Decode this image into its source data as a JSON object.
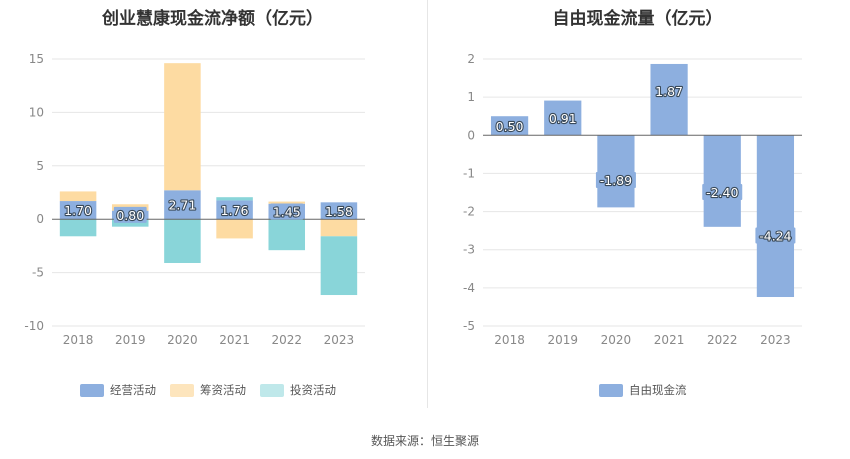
{
  "source": "数据来源：恒生聚源",
  "colors": {
    "operating": "#8dafdf",
    "financing": "#fddba2",
    "investing": "#89d5d9",
    "free": "#8dafdf",
    "grid": "#e6e6e6",
    "axis": "#666666",
    "tick_text": "#888888"
  },
  "chart_data": [
    {
      "type": "bar",
      "stacked": true,
      "title": "创业慧康现金流净额（亿元）",
      "categories": [
        "2018",
        "2019",
        "2020",
        "2021",
        "2022",
        "2023"
      ],
      "ylim": [
        -10,
        15
      ],
      "yticks": [
        "15",
        "10",
        "5",
        "0",
        "-5",
        "-10"
      ],
      "grid": true,
      "legend_position": "bottom",
      "series": [
        {
          "name": "经营活动",
          "values": [
            1.7,
            0.8,
            2.71,
            1.76,
            1.45,
            1.58
          ],
          "labels": [
            "1.70",
            "0.80",
            "2.71",
            "1.76",
            "1.45",
            "1.58"
          ]
        },
        {
          "name": "筹资活动",
          "values": [
            0.9,
            0.6,
            11.9,
            -1.8,
            0.2,
            -1.6
          ]
        },
        {
          "name": "投资活动",
          "values": [
            -1.6,
            -0.7,
            -4.1,
            0.3,
            -2.9,
            -5.5
          ]
        }
      ]
    },
    {
      "type": "bar",
      "title": "自由现金流量（亿元）",
      "categories": [
        "2018",
        "2019",
        "2020",
        "2021",
        "2022",
        "2023"
      ],
      "ylim": [
        -5,
        2
      ],
      "yticks": [
        "2",
        "1",
        "0",
        "-1",
        "-2",
        "-3",
        "-4",
        "-5"
      ],
      "grid": true,
      "legend_position": "bottom",
      "series": [
        {
          "name": "自由现金流",
          "values": [
            0.5,
            0.91,
            -1.89,
            1.87,
            -2.4,
            -4.24
          ],
          "labels": [
            "0.50",
            "0.91",
            "-1.89",
            "1.87",
            "-2.40",
            "-4.24"
          ]
        }
      ]
    }
  ]
}
